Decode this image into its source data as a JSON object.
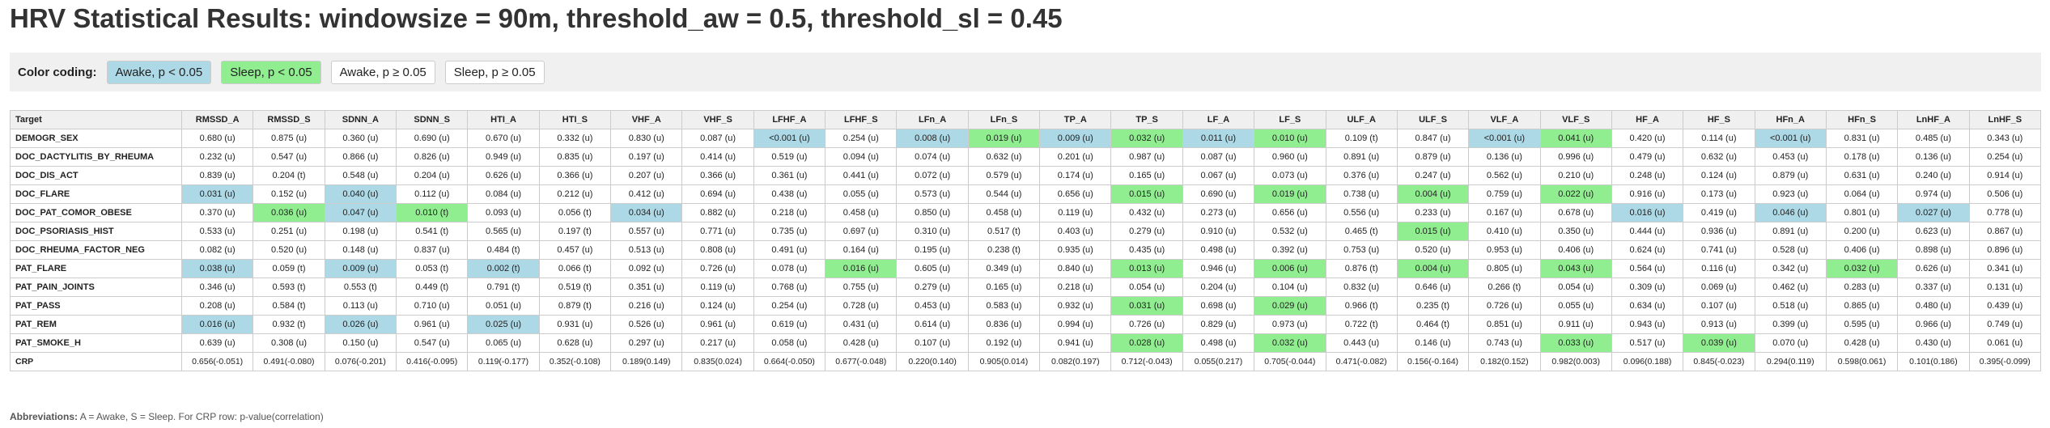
{
  "title": "HRV Statistical Results: windowsize = 90m, threshold_aw = 0.5, threshold_sl = 0.45",
  "legend": {
    "label": "Color coding:",
    "items": [
      {
        "text": "Awake, p < 0.05",
        "color": "#add8e6"
      },
      {
        "text": "Sleep, p < 0.05",
        "color": "#90ee90"
      },
      {
        "text": "Awake, p ≥ 0.05",
        "color": "#ffffff"
      },
      {
        "text": "Sleep, p ≥ 0.05",
        "color": "#ffffff"
      }
    ]
  },
  "table": {
    "headers": [
      "Target",
      "RMSSD_A",
      "RMSSD_S",
      "SDNN_A",
      "SDNN_S",
      "HTI_A",
      "HTI_S",
      "VHF_A",
      "VHF_S",
      "LFHF_A",
      "LFHF_S",
      "LFn_A",
      "LFn_S",
      "TP_A",
      "TP_S",
      "LF_A",
      "LF_S",
      "ULF_A",
      "ULF_S",
      "VLF_A",
      "VLF_S",
      "HF_A",
      "HF_S",
      "HFn_A",
      "HFn_S",
      "LnHF_A",
      "LnHF_S"
    ],
    "rows": [
      {
        "target": "DEMOGR_SEX",
        "cells": [
          "0.680 (u)",
          "0.875 (u)",
          "0.360 (u)",
          "0.690 (u)",
          "0.670 (u)",
          "0.332 (u)",
          "0.830 (u)",
          "0.087 (u)",
          "<0.001 (u)",
          "0.254 (u)",
          "0.008 (u)",
          "0.019 (u)",
          "0.009 (u)",
          "0.032 (u)",
          "0.011 (u)",
          "0.010 (u)",
          "0.109 (t)",
          "0.847 (u)",
          "<0.001 (u)",
          "0.041 (u)",
          "0.420 (u)",
          "0.114 (u)",
          "<0.001 (u)",
          "0.831 (u)",
          "0.485 (u)",
          "0.343 (u)"
        ],
        "hl": [
          "",
          "",
          "",
          "",
          "",
          "",
          "",
          "",
          "a",
          "",
          "a",
          "s",
          "a",
          "s",
          "a",
          "s",
          "",
          "",
          "a",
          "s",
          "",
          "",
          "a",
          "",
          "",
          ""
        ]
      },
      {
        "target": "DOC_DACTYLITIS_BY_RHEUMA",
        "cells": [
          "0.232 (u)",
          "0.547 (u)",
          "0.866 (u)",
          "0.826 (u)",
          "0.949 (u)",
          "0.835 (u)",
          "0.197 (u)",
          "0.414 (u)",
          "0.519 (u)",
          "0.094 (u)",
          "0.074 (u)",
          "0.632 (u)",
          "0.201 (u)",
          "0.987 (u)",
          "0.087 (u)",
          "0.960 (u)",
          "0.891 (u)",
          "0.879 (u)",
          "0.136 (u)",
          "0.996 (u)",
          "0.479 (u)",
          "0.632 (u)",
          "0.453 (u)",
          "0.178 (u)",
          "0.136 (u)",
          "0.254 (u)"
        ],
        "hl": [
          "",
          "",
          "",
          "",
          "",
          "",
          "",
          "",
          "",
          "",
          "",
          "",
          "",
          "",
          "",
          "",
          "",
          "",
          "",
          "",
          "",
          "",
          "",
          "",
          "",
          ""
        ]
      },
      {
        "target": "DOC_DIS_ACT",
        "cells": [
          "0.839 (u)",
          "0.204 (t)",
          "0.548 (u)",
          "0.204 (u)",
          "0.626 (u)",
          "0.366 (u)",
          "0.207 (u)",
          "0.366 (u)",
          "0.361 (u)",
          "0.441 (u)",
          "0.072 (u)",
          "0.579 (u)",
          "0.174 (u)",
          "0.165 (u)",
          "0.067 (u)",
          "0.073 (u)",
          "0.376 (u)",
          "0.247 (u)",
          "0.562 (u)",
          "0.210 (u)",
          "0.248 (u)",
          "0.124 (u)",
          "0.879 (u)",
          "0.631 (u)",
          "0.240 (u)",
          "0.914 (u)"
        ],
        "hl": [
          "",
          "",
          "",
          "",
          "",
          "",
          "",
          "",
          "",
          "",
          "",
          "",
          "",
          "",
          "",
          "",
          "",
          "",
          "",
          "",
          "",
          "",
          "",
          "",
          "",
          ""
        ]
      },
      {
        "target": "DOC_FLARE",
        "cells": [
          "0.031 (u)",
          "0.152 (u)",
          "0.040 (u)",
          "0.112 (u)",
          "0.084 (u)",
          "0.212 (u)",
          "0.412 (u)",
          "0.694 (u)",
          "0.438 (u)",
          "0.055 (u)",
          "0.573 (u)",
          "0.544 (u)",
          "0.656 (u)",
          "0.015 (u)",
          "0.690 (u)",
          "0.019 (u)",
          "0.738 (u)",
          "0.004 (u)",
          "0.759 (u)",
          "0.022 (u)",
          "0.916 (u)",
          "0.173 (u)",
          "0.923 (u)",
          "0.064 (u)",
          "0.974 (u)",
          "0.506 (u)"
        ],
        "hl": [
          "a",
          "",
          "a",
          "",
          "",
          "",
          "",
          "",
          "",
          "",
          "",
          "",
          "",
          "s",
          "",
          "s",
          "",
          "s",
          "",
          "s",
          "",
          "",
          "",
          "",
          "",
          ""
        ]
      },
      {
        "target": "DOC_PAT_COMOR_OBESE",
        "cells": [
          "0.370 (u)",
          "0.036 (u)",
          "0.047 (u)",
          "0.010 (t)",
          "0.093 (u)",
          "0.056 (t)",
          "0.034 (u)",
          "0.882 (u)",
          "0.218 (u)",
          "0.458 (u)",
          "0.850 (u)",
          "0.458 (u)",
          "0.119 (u)",
          "0.432 (u)",
          "0.273 (u)",
          "0.656 (u)",
          "0.556 (u)",
          "0.233 (u)",
          "0.167 (u)",
          "0.678 (u)",
          "0.016 (u)",
          "0.419 (u)",
          "0.046 (u)",
          "0.801 (u)",
          "0.027 (u)",
          "0.778 (u)"
        ],
        "hl": [
          "",
          "s",
          "a",
          "s",
          "",
          "",
          "a",
          "",
          "",
          "",
          "",
          "",
          "",
          "",
          "",
          "",
          "",
          "",
          "",
          "",
          "a",
          "",
          "a",
          "",
          "a",
          ""
        ]
      },
      {
        "target": "DOC_PSORIASIS_HIST",
        "cells": [
          "0.533 (u)",
          "0.251 (u)",
          "0.198 (u)",
          "0.541 (t)",
          "0.565 (u)",
          "0.197 (t)",
          "0.557 (u)",
          "0.771 (u)",
          "0.735 (u)",
          "0.697 (u)",
          "0.310 (u)",
          "0.517 (t)",
          "0.403 (u)",
          "0.279 (u)",
          "0.910 (u)",
          "0.532 (u)",
          "0.465 (t)",
          "0.015 (u)",
          "0.410 (u)",
          "0.350 (u)",
          "0.444 (u)",
          "0.936 (u)",
          "0.891 (u)",
          "0.200 (u)",
          "0.623 (u)",
          "0.867 (u)"
        ],
        "hl": [
          "",
          "",
          "",
          "",
          "",
          "",
          "",
          "",
          "",
          "",
          "",
          "",
          "",
          "",
          "",
          "",
          "",
          "s",
          "",
          "",
          "",
          "",
          "",
          "",
          "",
          ""
        ]
      },
      {
        "target": "DOC_RHEUMA_FACTOR_NEG",
        "cells": [
          "0.082 (u)",
          "0.520 (u)",
          "0.148 (u)",
          "0.837 (u)",
          "0.484 (t)",
          "0.457 (u)",
          "0.513 (u)",
          "0.808 (u)",
          "0.491 (u)",
          "0.164 (u)",
          "0.195 (u)",
          "0.238 (t)",
          "0.935 (u)",
          "0.435 (u)",
          "0.498 (u)",
          "0.392 (u)",
          "0.753 (u)",
          "0.520 (u)",
          "0.953 (u)",
          "0.406 (u)",
          "0.624 (u)",
          "0.741 (u)",
          "0.528 (u)",
          "0.406 (u)",
          "0.898 (u)",
          "0.896 (u)"
        ],
        "hl": [
          "",
          "",
          "",
          "",
          "",
          "",
          "",
          "",
          "",
          "",
          "",
          "",
          "",
          "",
          "",
          "",
          "",
          "",
          "",
          "",
          "",
          "",
          "",
          "",
          "",
          ""
        ]
      },
      {
        "target": "PAT_FLARE",
        "cells": [
          "0.038 (u)",
          "0.059 (t)",
          "0.009 (u)",
          "0.053 (t)",
          "0.002 (t)",
          "0.066 (t)",
          "0.092 (u)",
          "0.726 (u)",
          "0.078 (u)",
          "0.016 (u)",
          "0.605 (u)",
          "0.349 (u)",
          "0.840 (u)",
          "0.013 (u)",
          "0.946 (u)",
          "0.006 (u)",
          "0.876 (t)",
          "0.004 (u)",
          "0.805 (u)",
          "0.043 (u)",
          "0.564 (u)",
          "0.116 (u)",
          "0.342 (u)",
          "0.032 (u)",
          "0.626 (u)",
          "0.341 (u)"
        ],
        "hl": [
          "a",
          "",
          "a",
          "",
          "a",
          "",
          "",
          "",
          "",
          "s",
          "",
          "",
          "",
          "s",
          "",
          "s",
          "",
          "s",
          "",
          "s",
          "",
          "",
          "",
          "s",
          "",
          ""
        ]
      },
      {
        "target": "PAT_PAIN_JOINTS",
        "cells": [
          "0.346 (u)",
          "0.593 (t)",
          "0.553 (t)",
          "0.449 (t)",
          "0.791 (t)",
          "0.519 (t)",
          "0.351 (u)",
          "0.119 (u)",
          "0.768 (u)",
          "0.755 (u)",
          "0.279 (u)",
          "0.165 (u)",
          "0.218 (u)",
          "0.054 (u)",
          "0.204 (u)",
          "0.104 (u)",
          "0.832 (u)",
          "0.646 (u)",
          "0.266 (t)",
          "0.054 (u)",
          "0.309 (u)",
          "0.069 (u)",
          "0.462 (u)",
          "0.283 (u)",
          "0.337 (u)",
          "0.131 (u)"
        ],
        "hl": [
          "",
          "",
          "",
          "",
          "",
          "",
          "",
          "",
          "",
          "",
          "",
          "",
          "",
          "",
          "",
          "",
          "",
          "",
          "",
          "",
          "",
          "",
          "",
          "",
          "",
          ""
        ]
      },
      {
        "target": "PAT_PASS",
        "cells": [
          "0.208 (u)",
          "0.584 (t)",
          "0.113 (u)",
          "0.710 (u)",
          "0.051 (u)",
          "0.879 (t)",
          "0.216 (u)",
          "0.124 (u)",
          "0.254 (u)",
          "0.728 (u)",
          "0.453 (u)",
          "0.583 (u)",
          "0.932 (u)",
          "0.031 (u)",
          "0.698 (u)",
          "0.029 (u)",
          "0.966 (t)",
          "0.235 (t)",
          "0.726 (u)",
          "0.055 (u)",
          "0.634 (u)",
          "0.107 (u)",
          "0.518 (u)",
          "0.865 (u)",
          "0.480 (u)",
          "0.439 (u)"
        ],
        "hl": [
          "",
          "",
          "",
          "",
          "",
          "",
          "",
          "",
          "",
          "",
          "",
          "",
          "",
          "s",
          "",
          "s",
          "",
          "",
          "",
          "",
          "",
          "",
          "",
          "",
          "",
          ""
        ]
      },
      {
        "target": "PAT_REM",
        "cells": [
          "0.016 (u)",
          "0.932 (t)",
          "0.026 (u)",
          "0.961 (u)",
          "0.025 (u)",
          "0.931 (u)",
          "0.526 (u)",
          "0.961 (u)",
          "0.619 (u)",
          "0.431 (u)",
          "0.614 (u)",
          "0.836 (u)",
          "0.994 (u)",
          "0.726 (u)",
          "0.829 (u)",
          "0.973 (u)",
          "0.722 (t)",
          "0.464 (t)",
          "0.851 (u)",
          "0.911 (u)",
          "0.943 (u)",
          "0.913 (u)",
          "0.399 (u)",
          "0.595 (u)",
          "0.966 (u)",
          "0.749 (u)"
        ],
        "hl": [
          "a",
          "",
          "a",
          "",
          "a",
          "",
          "",
          "",
          "",
          "",
          "",
          "",
          "",
          "",
          "",
          "",
          "",
          "",
          "",
          "",
          "",
          "",
          "",
          "",
          "",
          ""
        ]
      },
      {
        "target": "PAT_SMOKE_H",
        "cells": [
          "0.639 (u)",
          "0.308 (u)",
          "0.150 (u)",
          "0.547 (u)",
          "0.065 (u)",
          "0.628 (u)",
          "0.297 (u)",
          "0.217 (u)",
          "0.058 (u)",
          "0.428 (u)",
          "0.107 (u)",
          "0.192 (u)",
          "0.941 (u)",
          "0.028 (u)",
          "0.498 (u)",
          "0.032 (u)",
          "0.443 (u)",
          "0.146 (u)",
          "0.743 (u)",
          "0.033 (u)",
          "0.517 (u)",
          "0.039 (u)",
          "0.070 (u)",
          "0.428 (u)",
          "0.430 (u)",
          "0.061 (u)"
        ],
        "hl": [
          "",
          "",
          "",
          "",
          "",
          "",
          "",
          "",
          "",
          "",
          "",
          "",
          "",
          "s",
          "",
          "s",
          "",
          "",
          "",
          "s",
          "",
          "s",
          "",
          "",
          "",
          ""
        ]
      },
      {
        "target": "CRP",
        "crp": true,
        "cells": [
          "0.656(-0.051)",
          "0.491(-0.080)",
          "0.076(-0.201)",
          "0.416(-0.095)",
          "0.119(-0.177)",
          "0.352(-0.108)",
          "0.189(0.149)",
          "0.835(0.024)",
          "0.664(-0.050)",
          "0.677(-0.048)",
          "0.220(0.140)",
          "0.905(0.014)",
          "0.082(0.197)",
          "0.712(-0.043)",
          "0.055(0.217)",
          "0.705(-0.044)",
          "0.471(-0.082)",
          "0.156(-0.164)",
          "0.182(0.152)",
          "0.982(0.003)",
          "0.096(0.188)",
          "0.845(-0.023)",
          "0.294(0.119)",
          "0.598(0.061)",
          "0.101(0.186)",
          "0.395(-0.099)"
        ],
        "hl": [
          "",
          "",
          "",
          "",
          "",
          "",
          "",
          "",
          "",
          "",
          "",
          "",
          "",
          "",
          "",
          "",
          "",
          "",
          "",
          "",
          "",
          "",
          "",
          "",
          "",
          ""
        ]
      }
    ]
  },
  "footnote": {
    "label": "Abbreviations:",
    "text": " A = Awake, S = Sleep. For CRP row: p-value(correlation)"
  }
}
